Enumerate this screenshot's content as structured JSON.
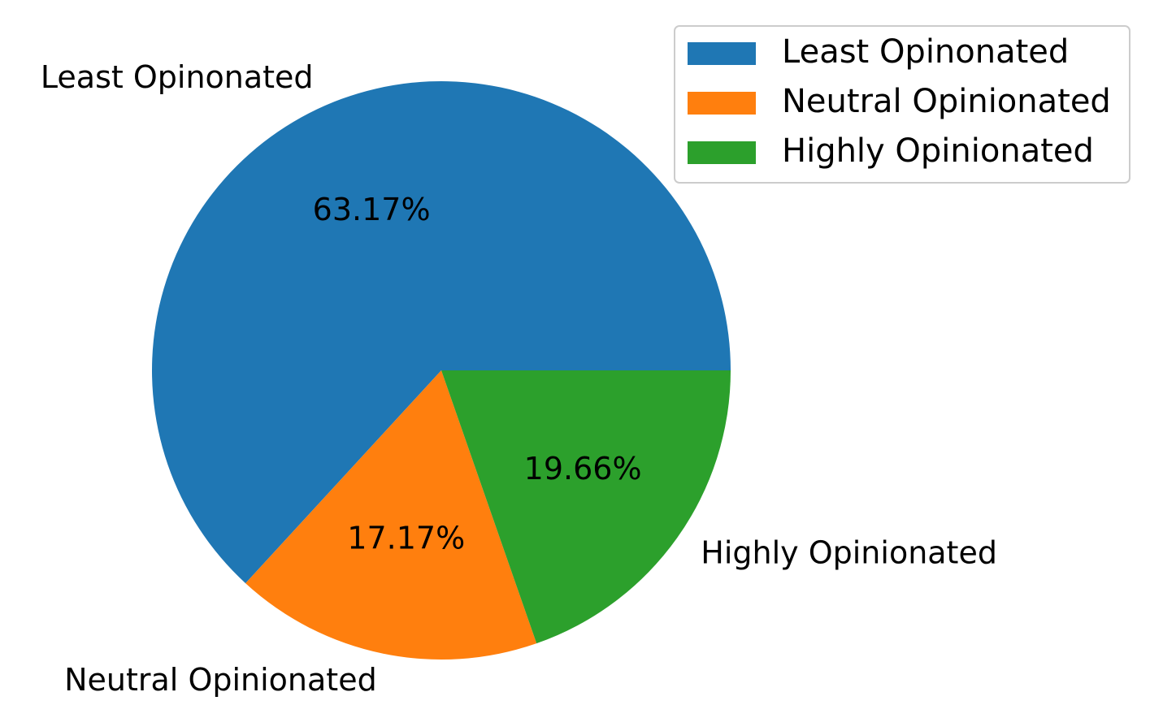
{
  "chart_data": {
    "type": "pie",
    "title": "",
    "categories": [
      "Least Opinonated",
      "Neutral Opinionated",
      "Highly Opinionated"
    ],
    "values": [
      63.17,
      17.17,
      19.66
    ],
    "percent_labels": [
      "63.17%",
      "17.17%",
      "19.66%"
    ],
    "colors": [
      "#1f77b4",
      "#ff7f0e",
      "#2ca02c"
    ],
    "start_angle_deg": 0,
    "direction": "counterclockwise",
    "legend": {
      "placement": "top-right",
      "entries": [
        "Least Opinonated",
        "Neutral Opinionated",
        "Highly Opinionated"
      ]
    }
  }
}
